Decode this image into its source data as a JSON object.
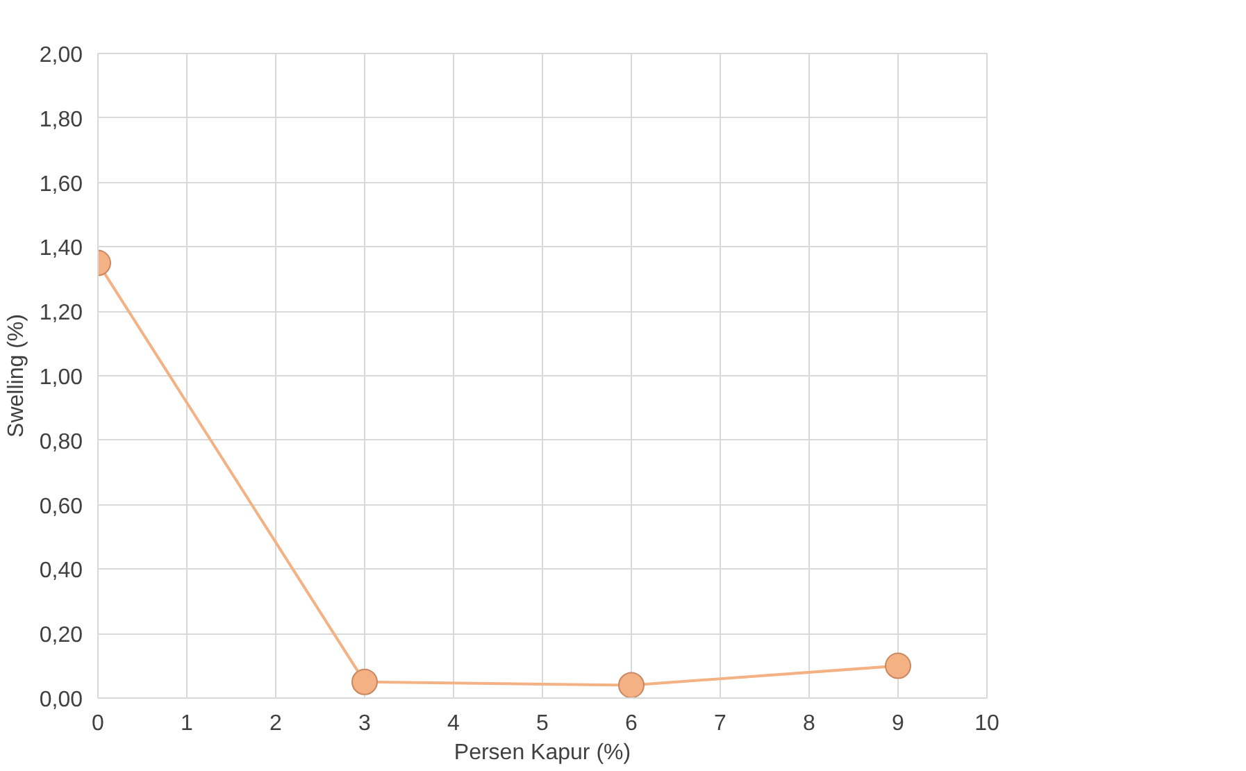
{
  "chart_data": {
    "type": "line",
    "marker": "circle",
    "xlabel": "Persen Kapur (%)",
    "ylabel": "Swelling (%)",
    "x": [
      0,
      3,
      6,
      9
    ],
    "series": [
      {
        "color": "#f4b183",
        "values": [
          1.35,
          0.05,
          0.04,
          0.1
        ]
      }
    ],
    "xlim": [
      0,
      10
    ],
    "xticks": [
      0,
      1,
      2,
      3,
      4,
      5,
      6,
      7,
      8,
      9,
      10
    ],
    "ylim": [
      0,
      2
    ],
    "yticks": [
      {
        "value": 0,
        "label": "0,00"
      },
      {
        "value": 0.2,
        "label": "0,20"
      },
      {
        "value": 0.4,
        "label": "0,40"
      },
      {
        "value": 0.6,
        "label": "0,60"
      },
      {
        "value": 0.8,
        "label": "0,80"
      },
      {
        "value": 1.0,
        "label": "1,00"
      },
      {
        "value": 1.2,
        "label": "1,20"
      },
      {
        "value": 1.4,
        "label": "1,40"
      },
      {
        "value": 1.6,
        "label": "1,60"
      },
      {
        "value": 1.8,
        "label": "1,80"
      },
      {
        "value": 2.0,
        "label": "2,00"
      }
    ],
    "grid": true
  }
}
